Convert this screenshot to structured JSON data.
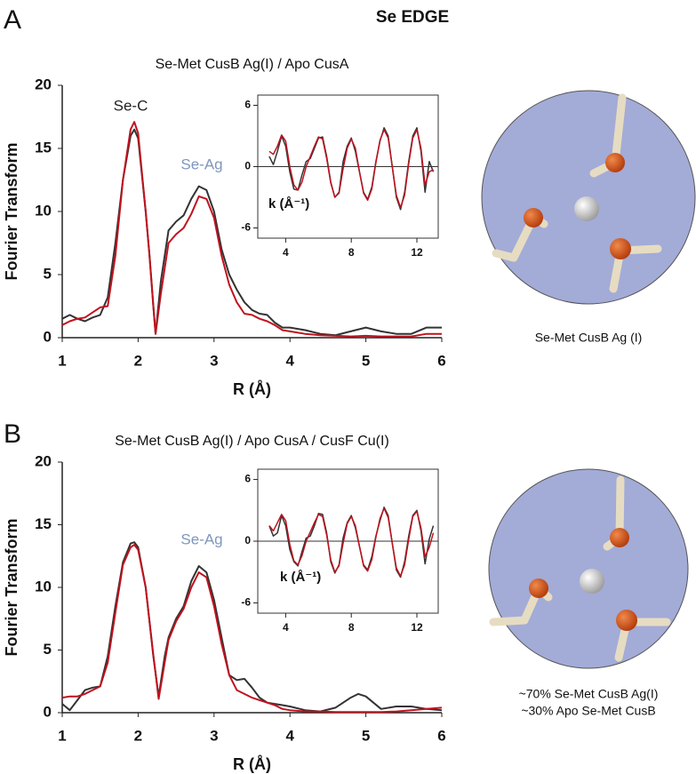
{
  "title": "Se EDGE",
  "panel_labels": [
    "A",
    "B"
  ],
  "captions": [
    "Se-Met CusB Ag (I)",
    "~70% Se-Met CusB Ag(I)",
    "~30% Apo Se-Met CusB"
  ],
  "chart_data": [
    {
      "type": "line",
      "title": "Se-Met CusB Ag(I) / Apo CusA",
      "xlabel": "R (Å)",
      "ylabel": "Fourier Transform",
      "x": [
        1,
        1.1,
        1.2,
        1.3,
        1.4,
        1.5,
        1.6,
        1.7,
        1.8,
        1.9,
        1.95,
        2.0,
        2.1,
        2.15,
        2.2,
        2.23,
        2.3,
        2.4,
        2.5,
        2.6,
        2.7,
        2.8,
        2.9,
        3.0,
        3.1,
        3.2,
        3.3,
        3.4,
        3.5,
        3.6,
        3.7,
        3.8,
        3.9,
        4.0,
        4.2,
        4.4,
        4.6,
        4.8,
        5.0,
        5.2,
        5.4,
        5.6,
        5.8,
        6.0
      ],
      "series": [
        {
          "color": "#333333",
          "values": [
            1.5,
            1.8,
            1.5,
            1.3,
            1.6,
            1.8,
            3.2,
            7.5,
            12.5,
            16,
            16.5,
            15.8,
            10,
            6.5,
            2.5,
            0.3,
            4.5,
            8.5,
            9.2,
            9.7,
            11,
            12,
            11.7,
            10,
            7,
            5,
            3.8,
            2.8,
            2.2,
            1.9,
            1.8,
            1.2,
            0.8,
            0.8,
            0.6,
            0.3,
            0.2,
            0.5,
            0.8,
            0.5,
            0.3,
            0.3,
            0.8,
            0.8
          ]
        },
        {
          "color": "#c0121e",
          "values": [
            1.0,
            1.3,
            1.5,
            1.6,
            2.0,
            2.4,
            2.5,
            6.5,
            12.5,
            16.5,
            17.1,
            16.2,
            10,
            6.5,
            2.5,
            0.3,
            3.5,
            7.5,
            8.2,
            8.7,
            9.8,
            11.2,
            11,
            9.5,
            6.5,
            4.2,
            2.8,
            1.9,
            1.8,
            1.5,
            1.3,
            1.0,
            0.6,
            0.5,
            0.3,
            0.2,
            0.15,
            0.1,
            0.15,
            0.1,
            0.1,
            0.1,
            0.3,
            0.3
          ]
        }
      ],
      "xlim": [
        1,
        6
      ],
      "ylim": [
        0,
        20
      ],
      "xticks": [
        1,
        2,
        3,
        4,
        5,
        6
      ],
      "yticks": [
        0,
        5,
        10,
        15,
        20
      ],
      "annotations": [
        {
          "text": "Se-C",
          "color": "#222222"
        },
        {
          "text": "Se-Ag",
          "color": "#7f96bd"
        }
      ]
    },
    {
      "type": "line",
      "xlabel": "k (Å⁻¹)",
      "x": [
        3,
        3.25,
        3.5,
        3.75,
        4,
        4.25,
        4.5,
        4.75,
        5,
        5.25,
        5.5,
        5.75,
        6,
        6.25,
        6.5,
        6.75,
        7,
        7.25,
        7.5,
        7.75,
        8,
        8.25,
        8.5,
        8.75,
        9,
        9.25,
        9.5,
        9.75,
        10,
        10.25,
        10.5,
        10.75,
        11,
        11.25,
        11.5,
        11.75,
        12,
        12.25,
        12.5,
        12.75,
        13
      ],
      "series": [
        {
          "color": "#333333",
          "values": [
            1.0,
            0.2,
            1.5,
            3.0,
            2.0,
            -0.5,
            -2.2,
            -2.3,
            -0.8,
            0.5,
            0.8,
            1.8,
            2.8,
            2.9,
            1.0,
            -1.5,
            -3.0,
            -2.5,
            0.5,
            2.0,
            2.8,
            1.5,
            -0.5,
            -2.5,
            -3.2,
            -2.0,
            0.5,
            2.5,
            3.8,
            3.0,
            0,
            -3.0,
            -4.2,
            -2.5,
            0.5,
            3.0,
            3.8,
            1.5,
            -2.5,
            0.5,
            -0.5
          ]
        },
        {
          "color": "#c0121e",
          "values": [
            1.5,
            1.2,
            2.0,
            3.1,
            2.5,
            0,
            -1.8,
            -2.3,
            -1.5,
            0,
            1.0,
            2.0,
            2.9,
            2.7,
            0.8,
            -1.6,
            -3.0,
            -2.6,
            -0.2,
            1.8,
            2.7,
            1.8,
            -0.5,
            -2.6,
            -3.3,
            -2.2,
            0.4,
            2.6,
            3.6,
            2.8,
            0,
            -2.8,
            -4.0,
            -2.8,
            0.3,
            2.8,
            3.6,
            1.8,
            -1.8,
            -0.5,
            -0.3
          ]
        }
      ],
      "xlim": [
        2.3,
        13.3
      ],
      "ylim": [
        -7,
        7
      ],
      "xticks": [
        4,
        8,
        12
      ],
      "yticks": [
        -6,
        0,
        6
      ],
      "zero_line": true
    },
    {
      "type": "line",
      "title": "Se-Met CusB Ag(I) / Apo CusA / CusF Cu(I)",
      "xlabel": "R (Å)",
      "ylabel": "Fourier Transform",
      "x": [
        1,
        1.1,
        1.2,
        1.3,
        1.4,
        1.5,
        1.6,
        1.7,
        1.8,
        1.9,
        1.95,
        2.0,
        2.1,
        2.2,
        2.27,
        2.35,
        2.4,
        2.5,
        2.6,
        2.7,
        2.8,
        2.9,
        3.0,
        3.1,
        3.2,
        3.3,
        3.4,
        3.5,
        3.6,
        3.7,
        3.8,
        3.9,
        4.0,
        4.2,
        4.4,
        4.6,
        4.8,
        4.9,
        5.0,
        5.2,
        5.4,
        5.6,
        5.8,
        6.0
      ],
      "series": [
        {
          "color": "#333333",
          "values": [
            0.7,
            0.2,
            1,
            1.8,
            2,
            2.1,
            4.5,
            8.5,
            12,
            13.5,
            13.6,
            13.2,
            10,
            4.5,
            1.3,
            4.5,
            6,
            7.5,
            8.5,
            10.5,
            11.7,
            11.2,
            9,
            6,
            3,
            2.6,
            2.7,
            2.0,
            1.2,
            0.8,
            0.7,
            0.6,
            0.5,
            0.2,
            0.1,
            0.4,
            1.2,
            1.5,
            1.3,
            0.3,
            0.5,
            0.5,
            0.3,
            0.2
          ]
        },
        {
          "color": "#c0121e",
          "values": [
            1.2,
            1.3,
            1.3,
            1.5,
            1.8,
            2.1,
            4.0,
            8.0,
            11.8,
            13.2,
            13.4,
            13.0,
            10,
            4.6,
            1.1,
            4.0,
            5.8,
            7.3,
            8.3,
            10,
            11.2,
            10.8,
            8.5,
            5.5,
            3,
            1.8,
            1.5,
            1.2,
            1.0,
            0.8,
            0.6,
            0.3,
            0.2,
            0.1,
            0.1,
            0.05,
            0.05,
            0.05,
            0.05,
            0.05,
            0.1,
            0.2,
            0.3,
            0.4
          ]
        }
      ],
      "xlim": [
        1,
        6
      ],
      "ylim": [
        0,
        20
      ],
      "xticks": [
        1,
        2,
        3,
        4,
        5,
        6
      ],
      "yticks": [
        0,
        5,
        10,
        15,
        20
      ],
      "annotations": [
        {
          "text": "Se-Ag",
          "color": "#7f96bd"
        }
      ]
    },
    {
      "type": "line",
      "xlabel": "k (Å⁻¹)",
      "x": [
        3,
        3.25,
        3.5,
        3.75,
        4,
        4.25,
        4.5,
        4.75,
        5,
        5.25,
        5.5,
        5.75,
        6,
        6.25,
        6.5,
        6.75,
        7,
        7.25,
        7.5,
        7.75,
        8,
        8.25,
        8.5,
        8.75,
        9,
        9.25,
        9.5,
        9.75,
        10,
        10.25,
        10.5,
        10.75,
        11,
        11.25,
        11.5,
        11.75,
        12,
        12.25,
        12.5,
        12.75,
        13
      ],
      "series": [
        {
          "color": "#333333",
          "values": [
            1.5,
            0.5,
            0.8,
            2.5,
            1.5,
            -0.8,
            -2.0,
            -2.4,
            -1.0,
            0.3,
            0.5,
            1.5,
            2.7,
            2.6,
            0.8,
            -2.0,
            -3.1,
            -2.3,
            0.3,
            1.8,
            2.5,
            1.3,
            -0.5,
            -2.3,
            -2.8,
            -1.5,
            0.5,
            2.0,
            3.3,
            2.5,
            -0.2,
            -2.8,
            -3.5,
            -2.0,
            0.5,
            2.5,
            3.0,
            1.0,
            -2.2,
            0.2,
            1.5
          ]
        },
        {
          "color": "#c0121e",
          "values": [
            1.5,
            1.0,
            1.8,
            2.6,
            2.0,
            -0.3,
            -1.9,
            -2.3,
            -1.4,
            0,
            0.9,
            1.8,
            2.6,
            2.4,
            0.6,
            -1.8,
            -3.0,
            -2.4,
            -0.2,
            1.7,
            2.4,
            1.5,
            -0.5,
            -2.4,
            -2.9,
            -1.8,
            0.4,
            2.2,
            3.2,
            2.3,
            -0.2,
            -2.6,
            -3.4,
            -2.3,
            0.2,
            2.4,
            2.9,
            1.3,
            -1.5,
            -0.6,
            0.8
          ]
        }
      ],
      "xlim": [
        2.3,
        13.3
      ],
      "ylim": [
        -7,
        7
      ],
      "xticks": [
        4,
        8,
        12
      ],
      "yticks": [
        -6,
        0,
        6
      ],
      "zero_line": true
    }
  ]
}
